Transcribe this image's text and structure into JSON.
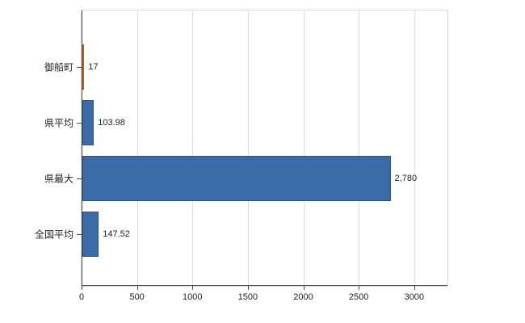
{
  "chart_data": {
    "type": "bar",
    "orientation": "horizontal",
    "title": "",
    "xlabel": "",
    "ylabel": "",
    "categories": [
      "御船町",
      "県平均",
      "県最大",
      "全国平均"
    ],
    "values": [
      17,
      103.98,
      2780,
      147.52
    ],
    "value_labels": [
      "17",
      "103.98",
      "2,780",
      "147.52"
    ],
    "xlim": [
      0,
      3300
    ],
    "x_ticks": [
      0,
      500,
      1000,
      1500,
      2000,
      2500,
      3000
    ],
    "x_tick_labels": [
      "0",
      "500",
      "1000",
      "1500",
      "2000",
      "2500",
      "3000"
    ],
    "grid": true,
    "legend": false,
    "bar_colors": [
      "#E8772C",
      "#3B6BA6",
      "#3B6BA6",
      "#3B6BA6"
    ],
    "bar_border_colors": [
      "#C05A14",
      "#2D547F",
      "#2D547F",
      "#2D547F"
    ],
    "colors": {
      "grid": "#dcdcdc",
      "axis": "#4d4d4d",
      "text": "#222222",
      "background": "#ffffff"
    }
  }
}
